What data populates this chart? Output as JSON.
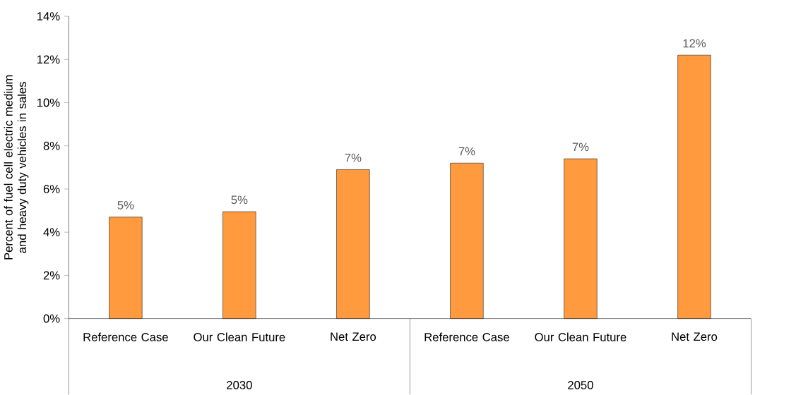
{
  "chart_data": {
    "type": "bar",
    "ylabel": "Percent of fuel cell electric medium and heavy duty vehicles in sales",
    "categories": [
      "Reference Case",
      "Our Clean Future",
      "Net Zero",
      "Reference Case",
      "Our Clean Future",
      "Net Zero"
    ],
    "values": [
      4.7,
      4.95,
      6.9,
      7.2,
      7.4,
      12.2
    ],
    "value_labels": [
      "5%",
      "5%",
      "7%",
      "7%",
      "7%",
      "12%"
    ],
    "color": "#ff9a3f",
    "annotations": [
      "2030",
      "2050"
    ],
    "ylim": [
      0,
      14
    ],
    "yticks": [
      {
        "value": 0,
        "label": "0%"
      },
      {
        "value": 2,
        "label": "2%"
      },
      {
        "value": 4,
        "label": "4%"
      },
      {
        "value": 6,
        "label": "6%"
      },
      {
        "value": 8,
        "label": "8%"
      },
      {
        "value": 10,
        "label": "10%"
      },
      {
        "value": 12,
        "label": "12%"
      },
      {
        "value": 14,
        "label": "14%"
      }
    ]
  }
}
